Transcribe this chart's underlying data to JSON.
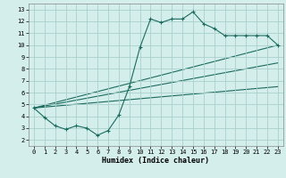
{
  "xlabel": "Humidex (Indice chaleur)",
  "ylabel": "",
  "xlim": [
    -0.5,
    23.5
  ],
  "ylim": [
    1.5,
    13.5
  ],
  "xticks": [
    0,
    1,
    2,
    3,
    4,
    5,
    6,
    7,
    8,
    9,
    10,
    11,
    12,
    13,
    14,
    15,
    16,
    17,
    18,
    19,
    20,
    21,
    22,
    23
  ],
  "yticks": [
    2,
    3,
    4,
    5,
    6,
    7,
    8,
    9,
    10,
    11,
    12,
    13
  ],
  "bg_color": "#d4eeeb",
  "grid_color": "#aacfcc",
  "line_color": "#1a6b5e",
  "curve_x": [
    0,
    1,
    2,
    3,
    4,
    5,
    6,
    7,
    8,
    9,
    10,
    11,
    12,
    13,
    14,
    15,
    16,
    17,
    18,
    19,
    20,
    21,
    22,
    23
  ],
  "curve_y": [
    4.7,
    3.9,
    3.2,
    2.9,
    3.2,
    3.0,
    2.4,
    2.8,
    4.1,
    6.5,
    9.8,
    12.2,
    11.9,
    12.2,
    12.2,
    12.8,
    11.8,
    11.4,
    10.8,
    10.8,
    10.8,
    10.8,
    10.8,
    10.0
  ],
  "line1_x": [
    0,
    23
  ],
  "line1_y": [
    4.7,
    10.0
  ],
  "line2_x": [
    0,
    23
  ],
  "line2_y": [
    4.7,
    6.5
  ],
  "line3_x": [
    0,
    23
  ],
  "line3_y": [
    4.7,
    8.5
  ],
  "xlabel_fontsize": 6,
  "tick_fontsize": 5
}
